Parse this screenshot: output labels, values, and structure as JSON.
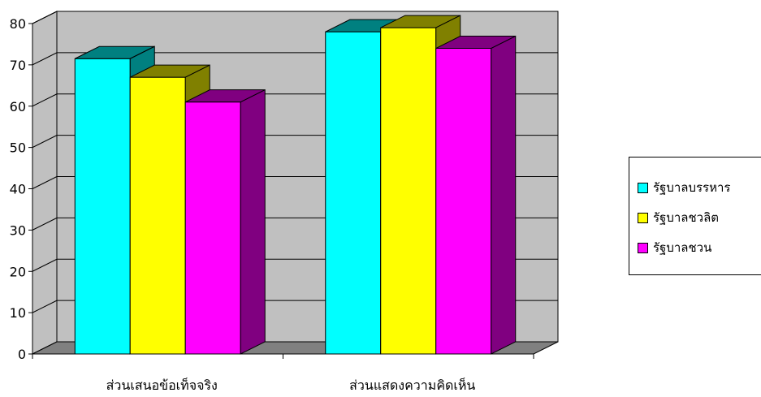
{
  "chart_data": {
    "type": "bar",
    "categories": [
      "ส่วนเสนอข้อเท็จจริง",
      "ส่วนแสดงความคิดเห็น"
    ],
    "series": [
      {
        "name": "รัฐบาลบรรหาร",
        "values": [
          71.5,
          78
        ],
        "color": "#00FFFF",
        "side_color": "#008080"
      },
      {
        "name": "รัฐบาลชวลิต",
        "values": [
          67,
          79
        ],
        "color": "#FFFF00",
        "side_color": "#808000"
      },
      {
        "name": "รัฐบาลชวน",
        "values": [
          61,
          74
        ],
        "color": "#FF00FF",
        "side_color": "#800080"
      }
    ],
    "yticks": [
      "0",
      "10",
      "20",
      "30",
      "40",
      "50",
      "60",
      "70",
      "80"
    ],
    "ylim": [
      0,
      80
    ],
    "grid": true,
    "style": "3d-clustered-column",
    "legend_position": "right",
    "wall_color": "#C0C0C0",
    "floor_color": "#808080"
  }
}
